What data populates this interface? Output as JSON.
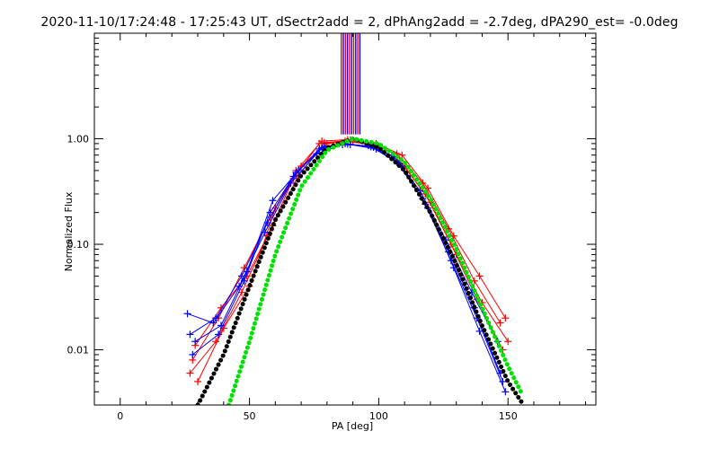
{
  "title": "2020-11-10/17:24:48 - 17:25:43 UT, dSectr2add = 2, dPhAng2add = -2.7deg, dPA290_est= -0.0deg",
  "colors": {
    "red": "#ff0000",
    "blue": "#0000ff",
    "black": "#000000",
    "green": "#00e000",
    "axis": "#000000"
  },
  "chart_data": {
    "type": "line",
    "title": "2020-11-10/17:24:48 - 17:25:43 UT, dSectr2add = 2, dPhAng2add = -2.7deg, dPA290_est= -0.0deg",
    "xlabel": "PA [deg]",
    "ylabel": "Normalized Flux",
    "xlim": [
      -10,
      184
    ],
    "ylim": [
      0.003,
      10
    ],
    "yscale": "log",
    "x_ticks": [
      0,
      50,
      100,
      150
    ],
    "x_tick_labels": [
      "0",
      "50",
      "100",
      "150"
    ],
    "y_ticks": [
      0.01,
      0.1,
      1.0
    ],
    "y_tick_labels": [
      "0.01",
      "0.10",
      "1.00"
    ],
    "series": [
      {
        "name": "red-profile-a",
        "color": "red",
        "x": [
          27,
          37,
          47,
          57,
          67,
          77,
          87,
          97,
          107,
          117,
          127,
          137,
          147
        ],
        "y": [
          0.006,
          0.012,
          0.035,
          0.12,
          0.42,
          0.9,
          0.95,
          0.88,
          0.72,
          0.38,
          0.14,
          0.045,
          0.018
        ]
      },
      {
        "name": "red-profile-b",
        "color": "red",
        "x": [
          28,
          38,
          48,
          58,
          68,
          78,
          88,
          98,
          108,
          118,
          128,
          138,
          148
        ],
        "y": [
          0.008,
          0.02,
          0.06,
          0.18,
          0.5,
          0.95,
          0.98,
          0.86,
          0.62,
          0.3,
          0.1,
          0.03,
          0.01
        ]
      },
      {
        "name": "red-profile-c",
        "color": "red",
        "x": [
          29,
          39,
          49,
          59,
          69,
          79,
          89,
          99,
          109,
          119,
          129,
          139,
          149
        ],
        "y": [
          0.011,
          0.025,
          0.05,
          0.15,
          0.45,
          0.92,
          0.97,
          0.9,
          0.7,
          0.34,
          0.12,
          0.05,
          0.02
        ]
      },
      {
        "name": "red-profile-d",
        "color": "red",
        "x": [
          30,
          40,
          50,
          60,
          70,
          80,
          90,
          100,
          110,
          120,
          130,
          140,
          150
        ],
        "y": [
          0.005,
          0.016,
          0.04,
          0.22,
          0.55,
          0.9,
          0.96,
          0.82,
          0.55,
          0.25,
          0.08,
          0.028,
          0.012
        ]
      },
      {
        "name": "blue-profile-a",
        "color": "blue",
        "x": [
          26,
          36,
          46,
          56,
          66,
          76,
          86,
          96,
          106,
          116,
          126,
          136,
          146
        ],
        "y": [
          0.022,
          0.018,
          0.04,
          0.13,
          0.38,
          0.72,
          0.88,
          0.86,
          0.68,
          0.32,
          0.11,
          0.035,
          0.012
        ]
      },
      {
        "name": "blue-profile-b",
        "color": "blue",
        "x": [
          27,
          37,
          47,
          57,
          67,
          77,
          87,
          97,
          107,
          117,
          127,
          137,
          147
        ],
        "y": [
          0.014,
          0.02,
          0.05,
          0.16,
          0.44,
          0.8,
          0.9,
          0.84,
          0.6,
          0.27,
          0.085,
          0.025,
          0.006
        ]
      },
      {
        "name": "blue-profile-c",
        "color": "blue",
        "x": [
          28,
          38,
          48,
          58,
          68,
          78,
          88,
          98,
          108,
          118,
          128,
          138,
          148
        ],
        "y": [
          0.009,
          0.014,
          0.045,
          0.2,
          0.48,
          0.82,
          0.89,
          0.83,
          0.58,
          0.24,
          0.07,
          0.02,
          0.005
        ]
      },
      {
        "name": "blue-profile-d",
        "color": "blue",
        "x": [
          29,
          39,
          49,
          59,
          69,
          79,
          89,
          99,
          109,
          119,
          129,
          139,
          149
        ],
        "y": [
          0.012,
          0.017,
          0.055,
          0.26,
          0.5,
          0.85,
          0.88,
          0.8,
          0.55,
          0.22,
          0.06,
          0.015,
          0.004
        ]
      },
      {
        "name": "black-model",
        "color": "black",
        "x": [
          30,
          40,
          50,
          60,
          70,
          80,
          90,
          100,
          110,
          120,
          130,
          140,
          150,
          156
        ],
        "y": [
          0.003,
          0.009,
          0.04,
          0.17,
          0.45,
          0.82,
          1.0,
          0.83,
          0.5,
          0.2,
          0.065,
          0.017,
          0.005,
          0.003
        ]
      },
      {
        "name": "green-model",
        "color": "green",
        "x": [
          42,
          50,
          60,
          70,
          80,
          90,
          100,
          110,
          120,
          130,
          140,
          150,
          155
        ],
        "y": [
          0.003,
          0.012,
          0.08,
          0.35,
          0.78,
          1.0,
          0.9,
          0.6,
          0.27,
          0.09,
          0.025,
          0.007,
          0.004
        ]
      }
    ],
    "vertical_lines": {
      "color_order": [
        "red",
        "blue"
      ],
      "x": [
        85.5,
        86.3,
        87.1,
        87.9,
        88.7,
        89.5,
        90.3,
        91.1,
        91.9,
        92.7
      ],
      "y_bottom": 1.1,
      "y_top": 10
    }
  }
}
